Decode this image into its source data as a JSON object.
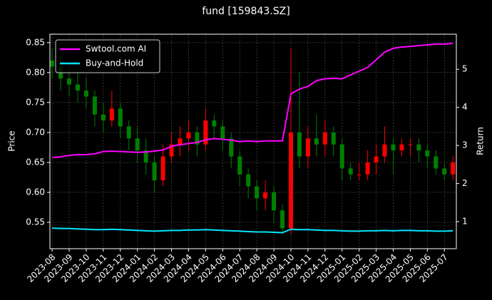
{
  "chart_data": {
    "type": "candlestick",
    "title": "fund [159843.SZ]",
    "y_label": "Price",
    "y2_label": "Return",
    "x": [
      0,
      0.5,
      1,
      1.5,
      2,
      2.5,
      3,
      3.5,
      4,
      4.5,
      5,
      5.5,
      6,
      6.5,
      7,
      7.5,
      8,
      8.5,
      9,
      9.5,
      10,
      10.5,
      11,
      11.5,
      12,
      12.5,
      13,
      13.5,
      14,
      14.5,
      15,
      15.5,
      16,
      16.5,
      17,
      17.5,
      18,
      18.5,
      19,
      19.5,
      20,
      20.5,
      21,
      21.5,
      22,
      22.5,
      23,
      23.5
    ],
    "open": [
      0.82,
      0.81,
      0.79,
      0.78,
      0.77,
      0.76,
      0.73,
      0.72,
      0.74,
      0.71,
      0.69,
      0.67,
      0.65,
      0.62,
      0.66,
      0.68,
      0.69,
      0.7,
      0.68,
      0.72,
      0.71,
      0.69,
      0.66,
      0.63,
      0.61,
      0.59,
      0.6,
      0.57,
      0.54,
      0.7,
      0.66,
      0.69,
      0.68,
      0.7,
      0.68,
      0.64,
      0.63,
      0.63,
      0.65,
      0.66,
      0.68,
      0.67,
      0.68,
      0.68,
      0.67,
      0.66,
      0.64,
      0.63
    ],
    "high": [
      0.84,
      0.83,
      0.81,
      0.8,
      0.79,
      0.77,
      0.75,
      0.77,
      0.75,
      0.72,
      0.71,
      0.69,
      0.66,
      0.68,
      0.7,
      0.71,
      0.72,
      0.71,
      0.74,
      0.73,
      0.72,
      0.7,
      0.67,
      0.64,
      0.62,
      0.62,
      0.61,
      0.58,
      0.84,
      0.8,
      0.71,
      0.73,
      0.72,
      0.71,
      0.69,
      0.65,
      0.65,
      0.67,
      0.68,
      0.71,
      0.69,
      0.69,
      0.69,
      0.69,
      0.68,
      0.67,
      0.65,
      0.66
    ],
    "low": [
      0.79,
      0.77,
      0.76,
      0.75,
      0.74,
      0.71,
      0.7,
      0.71,
      0.69,
      0.67,
      0.65,
      0.63,
      0.6,
      0.61,
      0.65,
      0.66,
      0.67,
      0.66,
      0.67,
      0.69,
      0.67,
      0.64,
      0.61,
      0.59,
      0.57,
      0.57,
      0.55,
      0.53,
      0.53,
      0.64,
      0.64,
      0.66,
      0.66,
      0.66,
      0.62,
      0.62,
      0.62,
      0.62,
      0.63,
      0.65,
      0.63,
      0.66,
      0.66,
      0.65,
      0.64,
      0.63,
      0.62,
      0.62
    ],
    "close": [
      0.81,
      0.79,
      0.78,
      0.77,
      0.76,
      0.73,
      0.72,
      0.74,
      0.71,
      0.69,
      0.67,
      0.65,
      0.62,
      0.66,
      0.68,
      0.69,
      0.7,
      0.68,
      0.72,
      0.71,
      0.69,
      0.66,
      0.63,
      0.61,
      0.59,
      0.6,
      0.57,
      0.54,
      0.7,
      0.66,
      0.69,
      0.68,
      0.7,
      0.68,
      0.64,
      0.63,
      0.63,
      0.65,
      0.66,
      0.68,
      0.67,
      0.68,
      0.68,
      0.67,
      0.66,
      0.64,
      0.63,
      0.65
    ],
    "up_color": "#ff0000",
    "down_color": "#008000",
    "series": [
      {
        "name": "Swtool.com AI",
        "color": "#ff00ff",
        "axis": "y2",
        "values": [
          2.68,
          2.7,
          2.74,
          2.76,
          2.76,
          2.78,
          2.84,
          2.85,
          2.84,
          2.83,
          2.82,
          2.83,
          2.85,
          2.88,
          2.98,
          3.02,
          3.05,
          3.08,
          3.15,
          3.18,
          3.16,
          3.14,
          3.1,
          3.12,
          3.1,
          3.12,
          3.12,
          3.12,
          4.35,
          4.48,
          4.55,
          4.7,
          4.75,
          4.76,
          4.75,
          4.85,
          4.95,
          5.05,
          5.25,
          5.45,
          5.55,
          5.58,
          5.6,
          5.62,
          5.64,
          5.66,
          5.66,
          5.68
        ]
      },
      {
        "name": "Buy-and-Hold",
        "color": "#00e5ff",
        "axis": "y2",
        "values": [
          0.83,
          0.82,
          0.82,
          0.81,
          0.8,
          0.79,
          0.79,
          0.8,
          0.79,
          0.78,
          0.77,
          0.76,
          0.75,
          0.76,
          0.77,
          0.77,
          0.78,
          0.78,
          0.79,
          0.78,
          0.77,
          0.76,
          0.75,
          0.74,
          0.73,
          0.73,
          0.72,
          0.71,
          0.8,
          0.79,
          0.79,
          0.78,
          0.77,
          0.77,
          0.76,
          0.75,
          0.75,
          0.76,
          0.76,
          0.77,
          0.76,
          0.77,
          0.77,
          0.76,
          0.76,
          0.75,
          0.75,
          0.76
        ]
      }
    ],
    "xlim": [
      -0.13,
      23.7
    ],
    "xticks": [
      {
        "value": 0,
        "label": "2023-08"
      },
      {
        "value": 1,
        "label": "2023-09"
      },
      {
        "value": 2,
        "label": "2023-10"
      },
      {
        "value": 3,
        "label": "2023-11"
      },
      {
        "value": 4,
        "label": "2023-12"
      },
      {
        "value": 5,
        "label": "2024-01"
      },
      {
        "value": 6,
        "label": "2024-02"
      },
      {
        "value": 7,
        "label": "2024-03"
      },
      {
        "value": 8,
        "label": "2024-04"
      },
      {
        "value": 9,
        "label": "2024-05"
      },
      {
        "value": 10,
        "label": "2024-06"
      },
      {
        "value": 11,
        "label": "2024-07"
      },
      {
        "value": 12,
        "label": "2024-08"
      },
      {
        "value": 13,
        "label": "2024-09"
      },
      {
        "value": 14,
        "label": "2024-10"
      },
      {
        "value": 15,
        "label": "2024-11"
      },
      {
        "value": 16,
        "label": "2024-12"
      },
      {
        "value": 17,
        "label": "2025-01"
      },
      {
        "value": 18,
        "label": "2025-02"
      },
      {
        "value": 19,
        "label": "2025-03"
      },
      {
        "value": 20,
        "label": "2025-04"
      },
      {
        "value": 21,
        "label": "2025-05"
      },
      {
        "value": 22,
        "label": "2025-06"
      },
      {
        "value": 23,
        "label": "2025-07"
      }
    ],
    "ylim": [
      0.506,
      0.864
    ],
    "yticks": [
      0.55,
      {
        "value": 0.6,
        "label": "0.60"
      },
      0.65,
      {
        "value": 0.7,
        "label": "0.70"
      },
      0.75,
      {
        "value": 0.8,
        "label": "0.80"
      },
      0.85
    ],
    "y2lim": [
      0.29,
      5.92
    ],
    "y2ticks": [
      1,
      2,
      3,
      4,
      5
    ],
    "grid": true,
    "legend": "upper-left"
  }
}
